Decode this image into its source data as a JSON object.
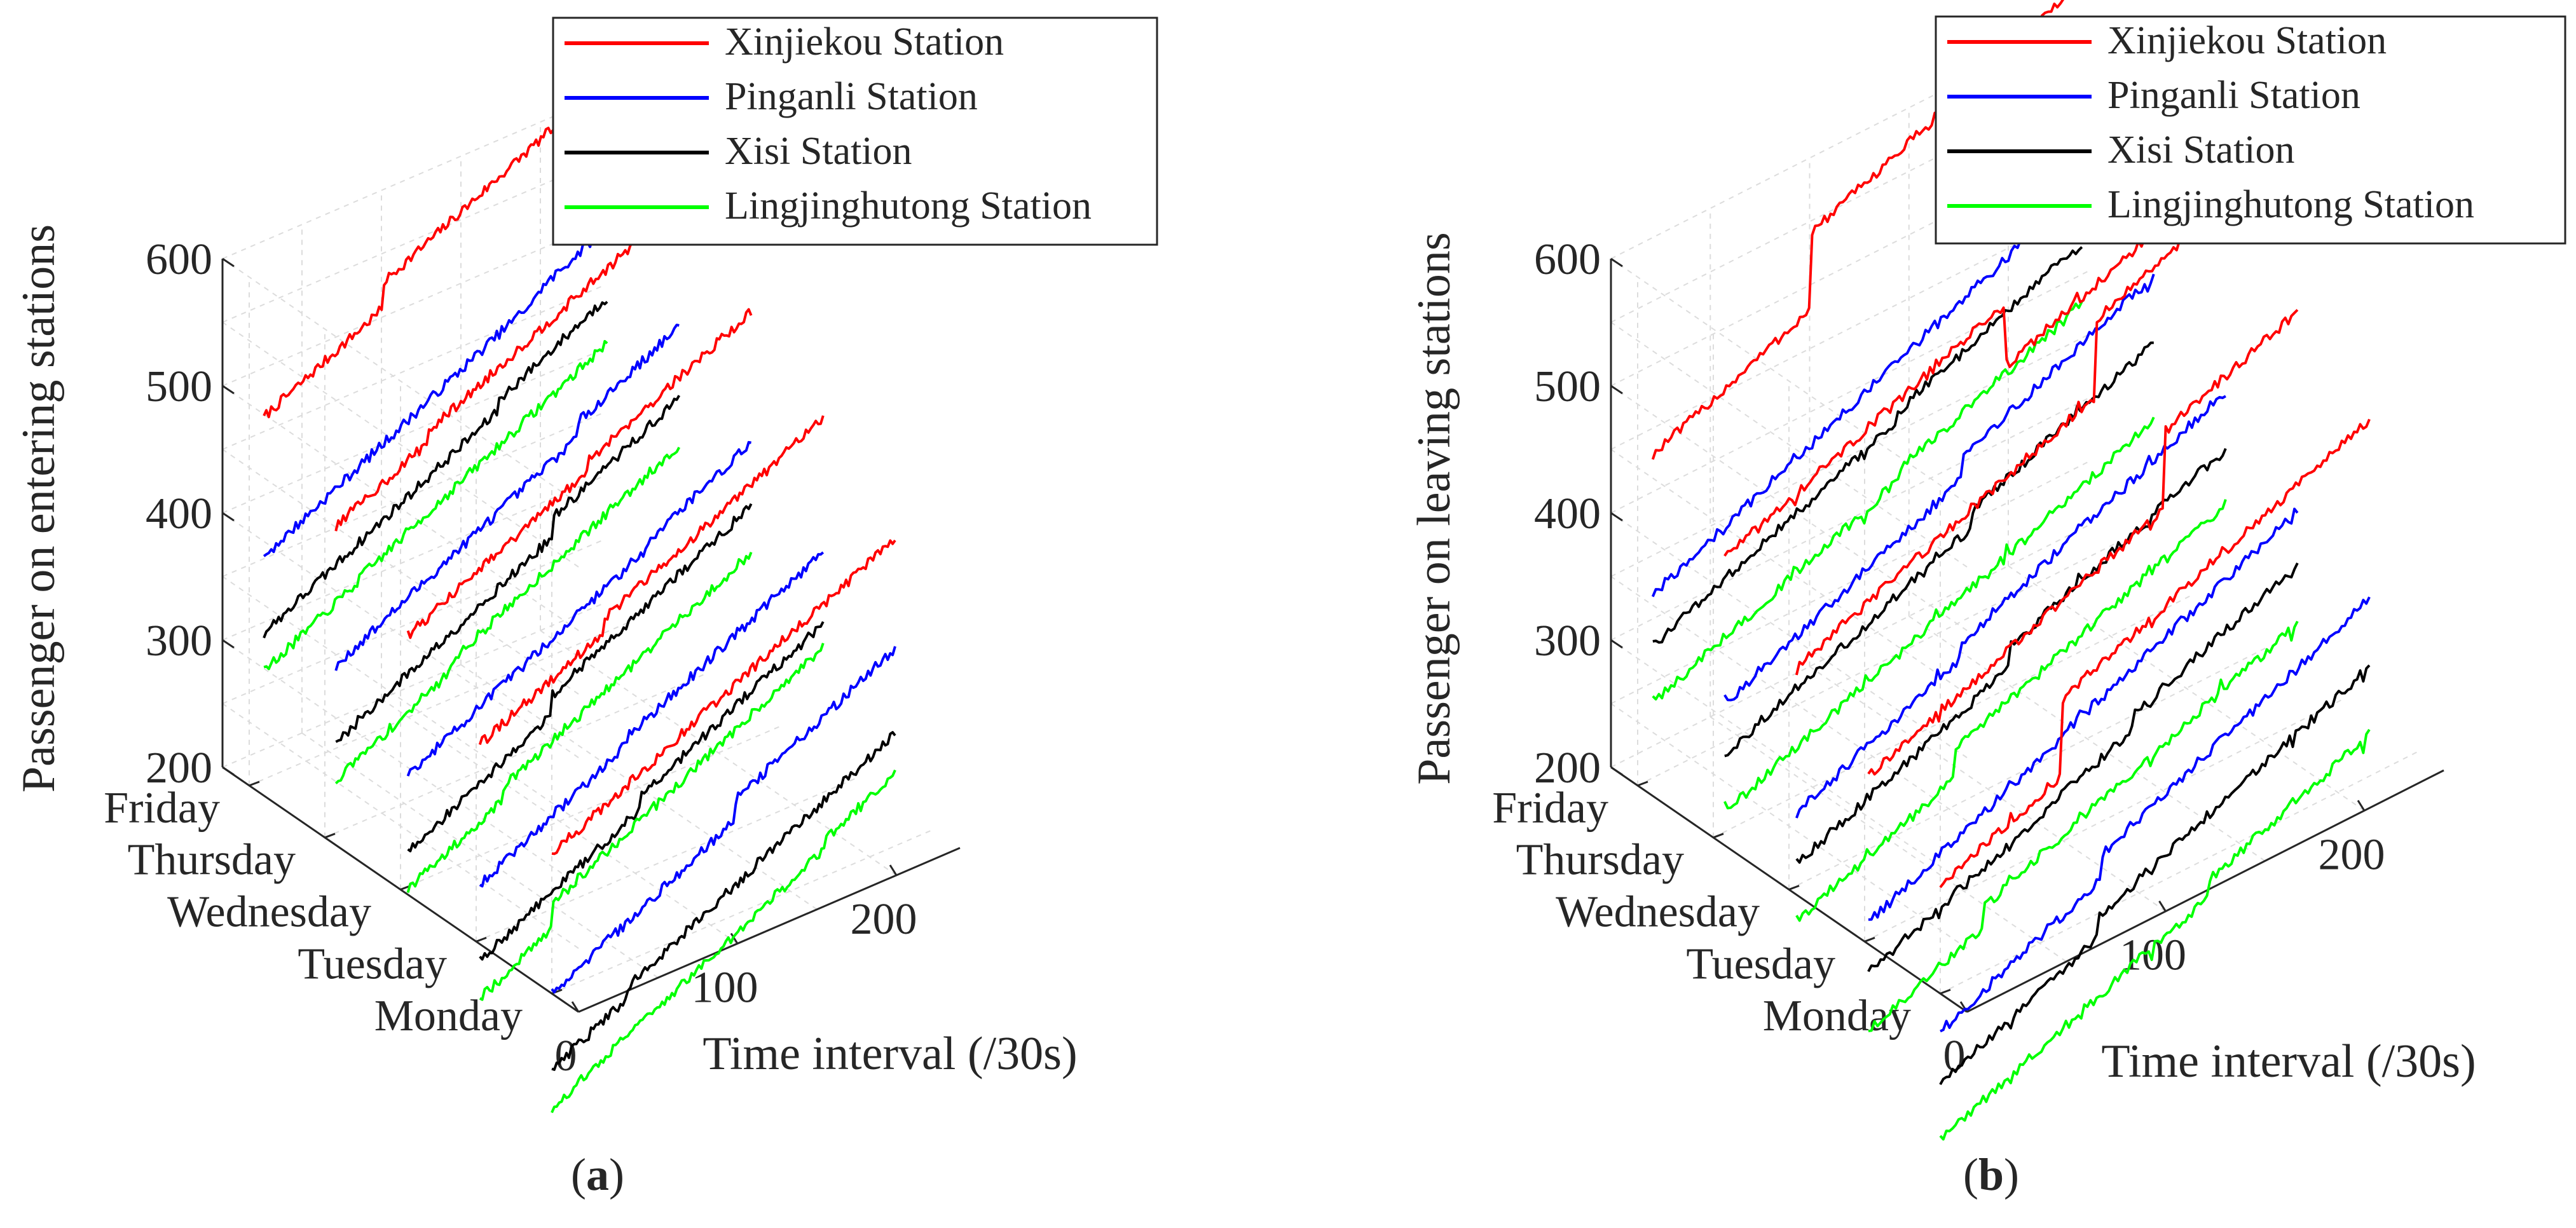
{
  "figure": {
    "panel_labels": [
      {
        "open": "(",
        "letter": "a",
        "close": ")"
      },
      {
        "open": "(",
        "letter": "b",
        "close": ")"
      }
    ]
  },
  "chart_data": [
    {
      "type": "line",
      "projection": "3d",
      "ylabel": "Passenger on entering stations",
      "xlabel": "Time interval (/30s)",
      "z_ticks": [
        "200",
        "300",
        "400",
        "500",
        "600"
      ],
      "x_ticks": [
        "0",
        "100",
        "200"
      ],
      "day_ticks": [
        "Friday",
        "Thursday",
        "Wednesday",
        "Tuesday",
        "Monday"
      ],
      "zlim": [
        200,
        600
      ],
      "xlim": [
        0,
        240
      ],
      "legend_position": "top-right",
      "series": [
        {
          "name": "Xinjiekou Station",
          "color": "#ff0000"
        },
        {
          "name": "Pinganli Station",
          "color": "#0000ff"
        },
        {
          "name": "Xisi Station",
          "color": "#000000"
        },
        {
          "name": "Lingjinghutong Station",
          "color": "#00ff00"
        }
      ],
      "days": [
        {
          "day": "Friday",
          "start": [
            490,
            380,
            320,
            290
          ],
          "end": [
            620,
            520,
            460,
            430
          ]
        },
        {
          "day": "Thursday",
          "start": [
            445,
            335,
            275,
            245
          ],
          "end": [
            575,
            475,
            415,
            385
          ]
        },
        {
          "day": "Wednesday",
          "start": [
            400,
            290,
            230,
            200
          ],
          "end": [
            530,
            430,
            370,
            340
          ]
        },
        {
          "day": "Tuesday",
          "start": [
            355,
            245,
            185,
            155
          ],
          "end": [
            485,
            385,
            325,
            295
          ]
        },
        {
          "day": "Monday",
          "start": [
            310,
            200,
            140,
            110
          ],
          "end": [
            440,
            340,
            280,
            250
          ]
        }
      ]
    },
    {
      "type": "line",
      "projection": "3d",
      "ylabel": "Passenger on leaving stations",
      "xlabel": "Time interval (/30s)",
      "z_ticks": [
        "200",
        "300",
        "400",
        "500",
        "600"
      ],
      "x_ticks": [
        "0",
        "100",
        "200"
      ],
      "day_ticks": [
        "Friday",
        "Thursday",
        "Wednesday",
        "Tuesday",
        "Monday"
      ],
      "zlim": [
        200,
        600
      ],
      "xlim": [
        0,
        240
      ],
      "legend_position": "top-right",
      "series": [
        {
          "name": "Xinjiekou Station",
          "color": "#ff0000"
        },
        {
          "name": "Pinganli Station",
          "color": "#0000ff"
        },
        {
          "name": "Xisi Station",
          "color": "#000000"
        },
        {
          "name": "Lingjinghutong Station",
          "color": "#00ff00"
        }
      ],
      "days": [
        {
          "day": "Friday",
          "start": [
            460,
            350,
            310,
            265
          ],
          "end": [
            600,
            500,
            450,
            400
          ]
        },
        {
          "day": "Thursday",
          "start": [
            420,
            305,
            265,
            220
          ],
          "end": [
            555,
            455,
            405,
            355
          ]
        },
        {
          "day": "Wednesday",
          "start": [
            375,
            260,
            220,
            175
          ],
          "end": [
            510,
            410,
            360,
            310
          ]
        },
        {
          "day": "Tuesday",
          "start": [
            330,
            215,
            175,
            130
          ],
          "end": [
            465,
            365,
            315,
            265
          ]
        },
        {
          "day": "Monday",
          "start": [
            285,
            170,
            130,
            85
          ],
          "end": [
            420,
            320,
            270,
            220
          ]
        }
      ]
    }
  ]
}
